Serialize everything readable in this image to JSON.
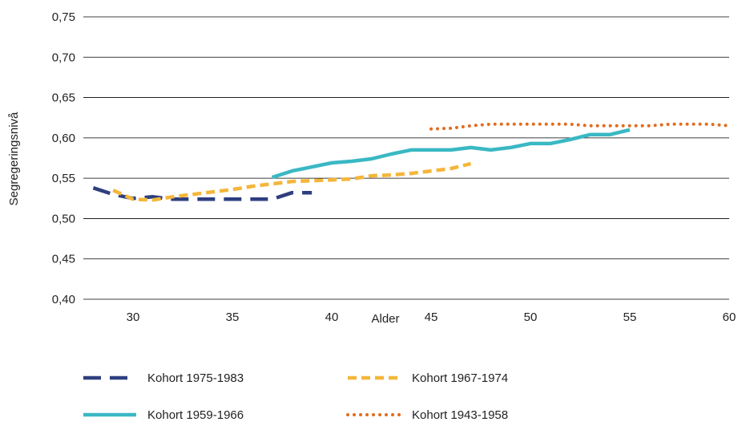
{
  "chart_data": {
    "type": "line",
    "title": "",
    "xlabel": "Alder",
    "ylabel": "Segregeringsnivå",
    "xlim": [
      27.5,
      60
    ],
    "ylim": [
      0.4,
      0.75
    ],
    "x_ticks": [
      30,
      35,
      40,
      45,
      50,
      55,
      60
    ],
    "y_ticks": [
      0.4,
      0.45,
      0.5,
      0.55,
      0.6,
      0.65,
      0.7,
      0.75
    ],
    "x_tick_labels": [
      "30",
      "35",
      "40",
      "45",
      "50",
      "55",
      "60"
    ],
    "y_tick_labels": [
      "0,40",
      "0,45",
      "0,50",
      "0,55",
      "0,60",
      "0,65",
      "0,70",
      "0,75"
    ],
    "grid": "horizontal",
    "legend_position": "bottom",
    "series": [
      {
        "name": "Kohort 1975-1983",
        "color": "#2e3f7f",
        "style": "long-dash",
        "x": [
          28,
          29,
          30,
          31,
          32,
          33,
          34,
          35,
          36,
          37,
          38,
          39
        ],
        "y": [
          0.538,
          0.53,
          0.525,
          0.527,
          0.524,
          0.524,
          0.524,
          0.524,
          0.524,
          0.524,
          0.532,
          0.532
        ]
      },
      {
        "name": "Kohort 1967-1974",
        "color": "#f4b63a",
        "style": "short-dash",
        "x": [
          29,
          30,
          31,
          32,
          33,
          34,
          35,
          36,
          37,
          38,
          39,
          40,
          41,
          42,
          43,
          44,
          45,
          46,
          47
        ],
        "y": [
          0.535,
          0.524,
          0.523,
          0.527,
          0.53,
          0.533,
          0.536,
          0.54,
          0.543,
          0.546,
          0.547,
          0.548,
          0.549,
          0.553,
          0.554,
          0.556,
          0.559,
          0.562,
          0.568
        ]
      },
      {
        "name": "Kohort 1959-1966",
        "color": "#3ab8c4",
        "style": "solid",
        "x": [
          37,
          38,
          39,
          40,
          41,
          42,
          43,
          44,
          45,
          46,
          47,
          48,
          49,
          50,
          51,
          52,
          53,
          54,
          55
        ],
        "y": [
          0.551,
          0.559,
          0.564,
          0.569,
          0.571,
          0.574,
          0.58,
          0.585,
          0.585,
          0.585,
          0.588,
          0.585,
          0.588,
          0.593,
          0.593,
          0.598,
          0.604,
          0.604,
          0.61
        ]
      },
      {
        "name": "Kohort 1943-1958",
        "color": "#e06c1e",
        "style": "dotted",
        "x": [
          45,
          46,
          47,
          48,
          49,
          50,
          51,
          52,
          53,
          54,
          55,
          56,
          57,
          58,
          59,
          60
        ],
        "y": [
          0.611,
          0.612,
          0.615,
          0.617,
          0.617,
          0.617,
          0.617,
          0.617,
          0.615,
          0.615,
          0.615,
          0.615,
          0.617,
          0.617,
          0.617,
          0.615
        ]
      }
    ]
  }
}
